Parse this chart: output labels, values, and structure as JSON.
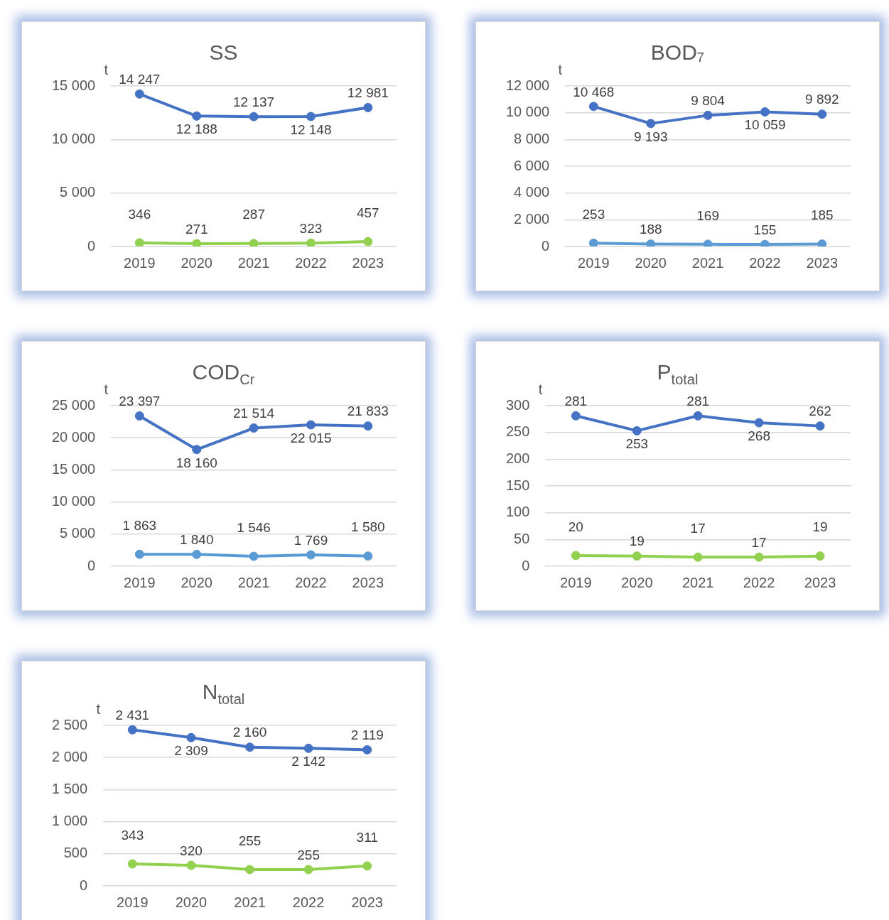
{
  "chart_data": [
    {
      "type": "line",
      "title": "SS",
      "ylabel": "t",
      "categories": [
        "2019",
        "2020",
        "2021",
        "2022",
        "2023"
      ],
      "series": [
        {
          "color": "#4472c4",
          "values": [
            14247,
            12188,
            12137,
            12148,
            12981
          ]
        },
        {
          "color": "#92d050",
          "values": [
            346,
            271,
            287,
            323,
            457
          ]
        }
      ],
      "ylim": [
        0,
        15000
      ],
      "yticks": [
        0,
        {
          "value": 5000,
          "label": "5 000"
        },
        {
          "value": 10000,
          "label": "10 000"
        },
        {
          "value": 15000,
          "label": "15 000"
        }
      ],
      "grid": "y",
      "marker": "circle",
      "data_labels": true
    },
    {
      "type": "line",
      "title": "BOD₇",
      "ylabel": "t",
      "categories": [
        "2019",
        "2020",
        "2021",
        "2022",
        "2023"
      ],
      "series": [
        {
          "color": "#4472c4",
          "values": [
            10468,
            9193,
            9804,
            10059,
            9892
          ]
        },
        {
          "color": "#5b9bd5",
          "values": [
            253,
            188,
            169,
            155,
            185
          ]
        }
      ],
      "ylim": [
        0,
        12000
      ],
      "yticks": [
        0,
        {
          "value": 2000,
          "label": "2 000"
        },
        {
          "value": 4000,
          "label": "4 000"
        },
        {
          "value": 6000,
          "label": "6 000"
        },
        {
          "value": 8000,
          "label": "8 000"
        },
        {
          "value": 10000,
          "label": "10 000"
        },
        {
          "value": 12000,
          "label": "12 000"
        }
      ],
      "grid": "y",
      "marker": "circle",
      "data_labels": true
    },
    {
      "type": "line",
      "title": "COD$_{Cr}$",
      "ylabel": "t",
      "categories": [
        "2019",
        "2020",
        "2021",
        "2022",
        "2023"
      ],
      "series": [
        {
          "color": "#4472c4",
          "values": [
            23397,
            18160,
            21514,
            22015,
            21833
          ]
        },
        {
          "color": "#5b9bd5",
          "values": [
            1863,
            1840,
            1546,
            1769,
            1580
          ]
        }
      ],
      "ylim": [
        0,
        25000
      ],
      "yticks": [
        0,
        {
          "value": 5000,
          "label": "5 000"
        },
        {
          "value": 10000,
          "label": "10 000"
        },
        {
          "value": 15000,
          "label": "15 000"
        },
        {
          "value": 20000,
          "label": "20 000"
        },
        {
          "value": 25000,
          "label": "25 000"
        }
      ],
      "grid": "y",
      "marker": "circle",
      "data_labels": true
    },
    {
      "type": "line",
      "title": "P$_{total}$",
      "ylabel": "t",
      "categories": [
        "2019",
        "2020",
        "2021",
        "2022",
        "2023"
      ],
      "series": [
        {
          "color": "#4472c4",
          "values": [
            281,
            253,
            281,
            268,
            262
          ]
        },
        {
          "color": "#92d050",
          "values": [
            20,
            19,
            17,
            17,
            19
          ]
        }
      ],
      "ylim": [
        0,
        300
      ],
      "yticks": [
        0,
        50,
        100,
        150,
        200,
        250,
        300
      ],
      "grid": "y",
      "marker": "circle",
      "data_labels": true
    },
    {
      "type": "line",
      "title": "N$_{total}$",
      "ylabel": "t",
      "categories": [
        "2019",
        "2020",
        "2021",
        "2022",
        "2023"
      ],
      "series": [
        {
          "color": "#4472c4",
          "values": [
            2431,
            2309,
            2160,
            2142,
            2119
          ]
        },
        {
          "color": "#92d050",
          "values": [
            343,
            320,
            255,
            255,
            311
          ]
        }
      ],
      "ylim": [
        0,
        2500
      ],
      "yticks": [
        0,
        500,
        {
          "value": 1000,
          "label": "1 000"
        },
        {
          "value": 1500,
          "label": "1 500"
        },
        {
          "value": 2000,
          "label": "2 000"
        },
        {
          "value": 2500,
          "label": "2 500"
        }
      ],
      "grid": "y",
      "marker": "circle",
      "data_labels": true
    }
  ]
}
